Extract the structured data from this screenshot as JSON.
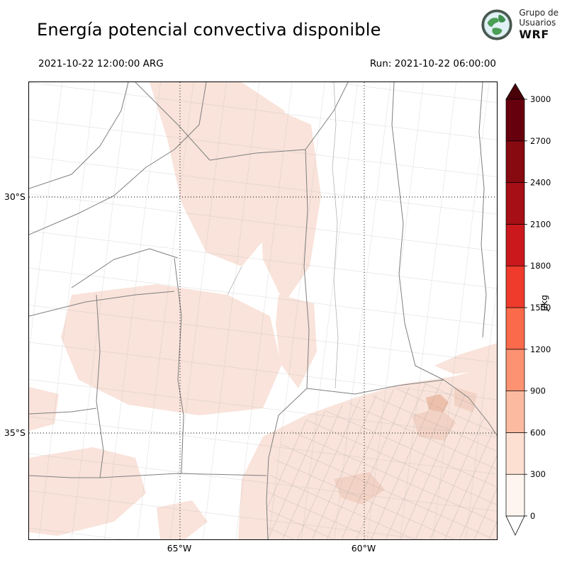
{
  "header": {
    "title": "Energía potencial convectiva disponible",
    "logo": {
      "line1": "Grupo de",
      "line2": "Usuarios",
      "line3": "WRF"
    },
    "valid_time": "2021-10-22 12:00:00 ARG",
    "run_time": "Run: 2021-10-22 06:00:00"
  },
  "axes": {
    "lat_ticks": [
      {
        "label": "30°S"
      },
      {
        "label": "35°S"
      }
    ],
    "lon_ticks": [
      {
        "label": "65°W"
      },
      {
        "label": "60°W"
      }
    ]
  },
  "colorbar": {
    "unit": "J/kg",
    "ticks": [
      "0",
      "300",
      "600",
      "900",
      "1200",
      "1500",
      "1800",
      "2100",
      "2400",
      "2700",
      "3000"
    ],
    "segment_colors": [
      "#fff5f0",
      "#fee0d2",
      "#fcbba1",
      "#fc9272",
      "#fb6a4a",
      "#ef3b2c",
      "#cb181d",
      "#a50f15",
      "#870a10",
      "#67000d"
    ],
    "under_color": "#ffffff",
    "over_color": "#4a0009"
  },
  "map_colors": {
    "shade_light": "#f9e3da",
    "shade_medium": "#f2d2c4",
    "shade_deep": "#ecc0ab",
    "boundary_major": "#7f7f7f",
    "boundary_minor": "#b8b8b8"
  },
  "chart_data": {
    "type": "heatmap",
    "title": "Energía potencial convectiva disponible",
    "variable": "CAPE (convective available potential energy)",
    "unit": "J/kg",
    "valid_time": "2021-10-22 12:00:00 ARG",
    "run_time": "2021-10-22 06:00:00",
    "colorbar_ticks": [
      0,
      300,
      600,
      900,
      1200,
      1500,
      1800,
      2100,
      2400,
      2700,
      3000
    ],
    "colorbar_range": [
      0,
      3000
    ],
    "lat_gridlines_shown": [
      "30°S",
      "35°S"
    ],
    "lon_gridlines_shown": [
      "65°W",
      "60°W"
    ],
    "depicted_values": "Mostly 0–600 J/kg: light pink shading over north-central provinces, the central Córdoba/San Luis region, southern Buenos Aires / La Pampa and the lower-right quadrant; remaining areas near 0 (white)."
  }
}
